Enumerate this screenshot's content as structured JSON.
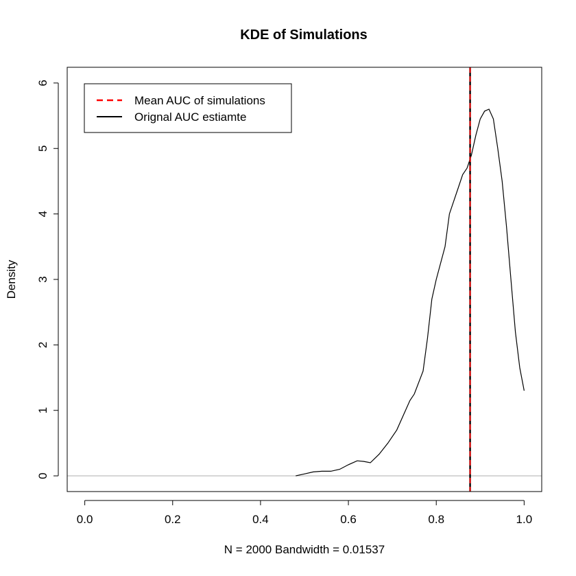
{
  "chart_data": {
    "type": "line",
    "title": "KDE of Simulations",
    "xlabel": "N = 2000   Bandwidth = 0.01537",
    "ylabel": "Density",
    "xlim": [
      -0.04,
      1.04
    ],
    "ylim": [
      -0.24,
      6.24
    ],
    "x_ticks": [
      "0.0",
      "0.2",
      "0.4",
      "0.6",
      "0.8",
      "1.0"
    ],
    "y_ticks": [
      "0",
      "1",
      "2",
      "3",
      "4",
      "5",
      "6"
    ],
    "grid": false,
    "legend_position": "top-left",
    "baseline_y": 0,
    "series": [
      {
        "name": "",
        "color": "#000000",
        "x": [
          0.48,
          0.5,
          0.52,
          0.54,
          0.56,
          0.58,
          0.6,
          0.62,
          0.635,
          0.65,
          0.67,
          0.69,
          0.71,
          0.73,
          0.74,
          0.75,
          0.77,
          0.78,
          0.79,
          0.8,
          0.82,
          0.83,
          0.85,
          0.86,
          0.87,
          0.88,
          0.89,
          0.9,
          0.91,
          0.92,
          0.93,
          0.94,
          0.95,
          0.96,
          0.97,
          0.98,
          0.99,
          1.0
        ],
        "y": [
          0.0,
          0.03,
          0.06,
          0.07,
          0.07,
          0.1,
          0.17,
          0.23,
          0.22,
          0.2,
          0.33,
          0.5,
          0.7,
          1.0,
          1.15,
          1.25,
          1.6,
          2.1,
          2.7,
          3.0,
          3.5,
          4.0,
          4.4,
          4.6,
          4.7,
          4.9,
          5.2,
          5.45,
          5.57,
          5.6,
          5.45,
          5.0,
          4.5,
          3.8,
          3.0,
          2.2,
          1.65,
          1.3
        ]
      }
    ],
    "vlines": [
      {
        "name": "Orignal AUC estiamte",
        "x": 0.877,
        "color": "#000000",
        "style": "solid"
      },
      {
        "name": "Mean AUC of simulations",
        "x": 0.877,
        "color": "#ff0000",
        "style": "dashed"
      }
    ],
    "legend": [
      {
        "label": "Mean AUC of simulations",
        "color": "#ff0000",
        "style": "dashed"
      },
      {
        "label": "Orignal AUC estiamte",
        "color": "#000000",
        "style": "solid"
      }
    ]
  }
}
